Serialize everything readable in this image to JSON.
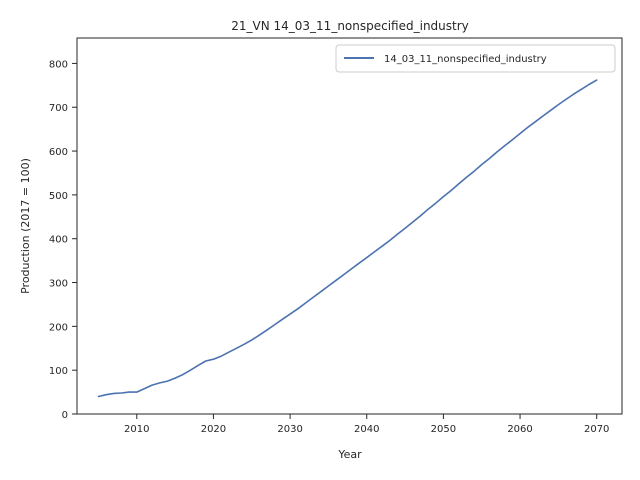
{
  "chart_data": {
    "type": "line",
    "title": "21_VN 14_03_11_nonspecified_industry",
    "xlabel": "Year",
    "ylabel": "Production (2017 = 100)",
    "xlim": [
      2002.2,
      2073.3
    ],
    "ylim": [
      0,
      858
    ],
    "xticks": [
      2010,
      2020,
      2030,
      2040,
      2050,
      2060,
      2070
    ],
    "yticks": [
      0,
      100,
      200,
      300,
      400,
      500,
      600,
      700,
      800
    ],
    "grid": false,
    "legend_position": "top-right",
    "series": [
      {
        "name": "14_03_11_nonspecified_industry",
        "color": "#4c72b0",
        "x": [
          2005,
          2006,
          2007,
          2008,
          2009,
          2010,
          2011,
          2012,
          2013,
          2014,
          2015,
          2016,
          2017,
          2018,
          2019,
          2020,
          2021,
          2022,
          2023,
          2024,
          2025,
          2026,
          2027,
          2028,
          2029,
          2030,
          2031,
          2032,
          2033,
          2034,
          2035,
          2036,
          2037,
          2038,
          2039,
          2040,
          2041,
          2042,
          2043,
          2044,
          2045,
          2046,
          2047,
          2048,
          2049,
          2050,
          2051,
          2052,
          2053,
          2054,
          2055,
          2056,
          2057,
          2058,
          2059,
          2060,
          2061,
          2062,
          2063,
          2064,
          2065,
          2066,
          2067,
          2068,
          2069,
          2070
        ],
        "y": [
          40,
          44,
          47,
          48,
          50,
          50,
          58,
          66,
          71,
          75,
          82,
          90,
          100,
          111,
          121,
          125,
          132,
          141,
          150,
          159,
          169,
          180,
          192,
          204,
          216,
          228,
          240,
          253,
          266,
          279,
          292,
          305,
          318,
          331,
          344,
          357,
          370,
          383,
          396,
          410,
          424,
          438,
          452,
          467,
          481,
          496,
          510,
          525,
          540,
          554,
          569,
          583,
          598,
          612,
          626,
          640,
          654,
          667,
          680,
          693,
          706,
          718,
          730,
          741,
          752,
          762
        ]
      }
    ]
  }
}
